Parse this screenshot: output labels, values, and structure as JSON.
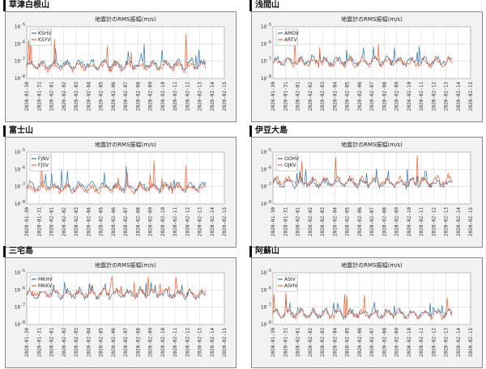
{
  "colors": {
    "blue": "#1f77b4",
    "orange": "#ff5a1f",
    "grid": "#cccccc",
    "plot_bg": "#ffffff"
  },
  "panels": [
    {
      "title": "草津白根山"
    },
    {
      "title": "浅間山"
    },
    {
      "title": "富士山"
    },
    {
      "title": "伊豆大島"
    },
    {
      "title": "三宅島"
    },
    {
      "title": "阿蘇山"
    }
  ],
  "chart_data": [
    {
      "type": "line",
      "title": "地震計のRMS振幅(m/s)",
      "x_ticks": [
        "2020-01-30",
        "2020-01-31",
        "2020-02-01",
        "2020-02-02",
        "2020-02-03",
        "2020-02-04",
        "2020-02-05",
        "2020-02-06",
        "2020-02-07",
        "2020-02-08",
        "2020-02-09",
        "2020-02-10",
        "2020-02-11",
        "2020-02-12",
        "2020-02-13",
        "2020-02-14",
        "2020-02-15"
      ],
      "y_ticks": [
        "10^-5",
        "10^-6",
        "10^-7",
        "10^-8"
      ],
      "ylim_exp": [
        -8,
        -5
      ],
      "x_end_day": 14.5,
      "series": [
        {
          "name": "KSHV",
          "color": "blue",
          "base": -7.2,
          "spike": 0.9
        },
        {
          "name": "KSYV",
          "color": "orange",
          "base": -7.3,
          "spike": 1.7
        }
      ]
    },
    {
      "type": "line",
      "title": "地震計のRMS振幅(m/s)",
      "x_ticks": [
        "2020-01-30",
        "2020-01-31",
        "2020-02-01",
        "2020-02-02",
        "2020-02-03",
        "2020-02-04",
        "2020-02-05",
        "2020-02-06",
        "2020-02-07",
        "2020-02-08",
        "2020-02-09",
        "2020-02-10",
        "2020-02-11",
        "2020-02-12",
        "2020-02-13",
        "2020-02-14",
        "2020-02-15"
      ],
      "y_ticks": [
        "10^-5",
        "10^-6",
        "10^-7",
        "10^-8"
      ],
      "ylim_exp": [
        -8,
        -5
      ],
      "x_end_day": 14.5,
      "series": [
        {
          "name": "AMOV",
          "color": "blue",
          "base": -7.0,
          "spike": 0.6
        },
        {
          "name": "ARTV",
          "color": "orange",
          "base": -7.05,
          "spike": 1.5
        }
      ]
    },
    {
      "type": "line",
      "title": "地震計のRMS振幅(m/s)",
      "x_ticks": [
        "2020-01-30",
        "2020-01-31",
        "2020-02-01",
        "2020-02-02",
        "2020-02-03",
        "2020-02-04",
        "2020-02-05",
        "2020-02-06",
        "2020-02-07",
        "2020-02-08",
        "2020-02-09",
        "2020-02-10",
        "2020-02-11",
        "2020-02-12",
        "2020-02-13",
        "2020-02-14",
        "2020-02-15"
      ],
      "y_ticks": [
        "10^-5",
        "10^-6",
        "10^-7",
        "10^-8"
      ],
      "ylim_exp": [
        -8,
        -5
      ],
      "x_end_day": 14.5,
      "series": [
        {
          "name": "FJNV",
          "color": "blue",
          "base": -7.0,
          "spike": 0.9
        },
        {
          "name": "FJSV",
          "color": "orange",
          "base": -7.1,
          "spike": 1.5
        }
      ]
    },
    {
      "type": "line",
      "title": "地震計のRMS振幅(m/s)",
      "x_ticks": [
        "2020-01-30",
        "2020-01-31",
        "2020-02-01",
        "2020-02-02",
        "2020-02-03",
        "2020-02-04",
        "2020-02-05",
        "2020-02-06",
        "2020-02-07",
        "2020-02-08",
        "2020-02-09",
        "2020-02-10",
        "2020-02-11",
        "2020-02-12",
        "2020-02-13",
        "2020-02-14",
        "2020-02-15"
      ],
      "y_ticks": [
        "10^-5",
        "10^-6",
        "10^-7",
        "10^-8"
      ],
      "ylim_exp": [
        -8,
        -5
      ],
      "x_end_day": 14.5,
      "series": [
        {
          "name": "OOHV",
          "color": "blue",
          "base": -6.8,
          "spike": 0.6
        },
        {
          "name": "OJKV",
          "color": "orange",
          "base": -6.7,
          "spike": 1.3
        }
      ]
    },
    {
      "type": "line",
      "title": "地震計のRMS振幅(m/s)",
      "x_ticks": [
        "2020-01-30",
        "2020-01-31",
        "2020-02-01",
        "2020-02-02",
        "2020-02-03",
        "2020-02-04",
        "2020-02-05",
        "2020-02-06",
        "2020-02-07",
        "2020-02-08",
        "2020-02-09",
        "2020-02-10",
        "2020-02-11",
        "2020-02-12",
        "2020-02-13",
        "2020-02-14",
        "2020-02-15"
      ],
      "y_ticks": [
        "10^-5",
        "10^-6",
        "10^-7",
        "10^-8"
      ],
      "ylim_exp": [
        -8,
        -5
      ],
      "x_end_day": 14.5,
      "series": [
        {
          "name": "MKHV",
          "color": "blue",
          "base": -6.25,
          "spike": 0.4
        },
        {
          "name": "MKKV",
          "color": "orange",
          "base": -6.2,
          "spike": 0.8
        }
      ]
    },
    {
      "type": "line",
      "title": "地震計のRMS振幅(m/s)",
      "x_ticks": [
        "2020-01-30",
        "2020-01-31",
        "2020-02-01",
        "2020-02-02",
        "2020-02-03",
        "2020-02-04",
        "2020-02-05",
        "2020-02-06",
        "2020-02-07",
        "2020-02-08",
        "2020-02-09",
        "2020-02-10",
        "2020-02-11",
        "2020-02-12",
        "2020-02-13",
        "2020-02-14",
        "2020-02-15"
      ],
      "y_ticks": [
        "10^-5",
        "10^-6",
        "10^-7",
        "10^-8"
      ],
      "ylim_exp": [
        -8,
        -5
      ],
      "x_end_day": 14.5,
      "series": [
        {
          "name": "ASIV",
          "color": "blue",
          "base": -7.35,
          "spike": 0.5
        },
        {
          "name": "ASHV",
          "color": "orange",
          "base": -7.4,
          "spike": 0.9
        }
      ]
    }
  ]
}
